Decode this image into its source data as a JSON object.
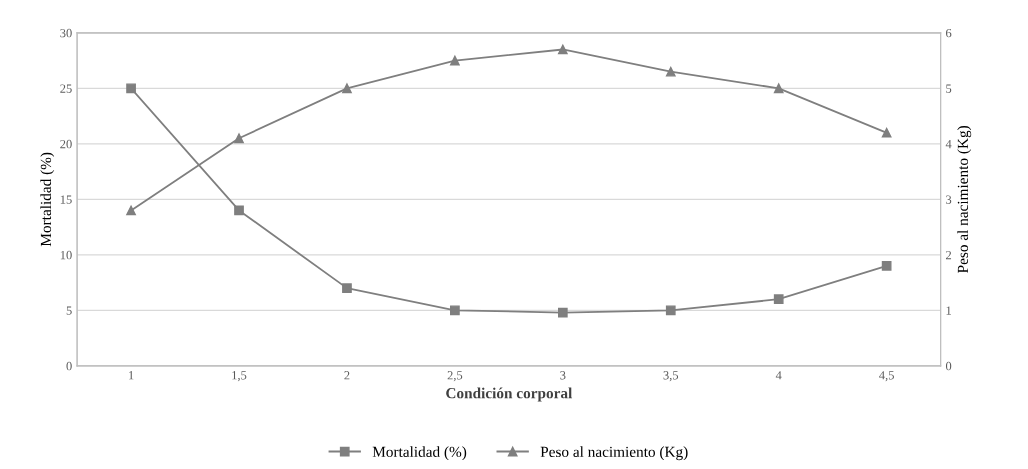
{
  "chart_data": {
    "type": "line",
    "xlabel": "Condición corporal",
    "ylabel": "Mortalidad (%)",
    "y2label": "Peso al nacimiento (Kg)",
    "categories": [
      "1",
      "1,5",
      "2",
      "2,5",
      "3",
      "3,5",
      "4",
      "4,5"
    ],
    "series": [
      {
        "name": "Mortalidad (%)",
        "color": "#7f7f7f",
        "marker": "square",
        "values": [
          25,
          14,
          7,
          5,
          4.8,
          5,
          6,
          9
        ]
      },
      {
        "name": "Peso al nacimiento (Kg)",
        "color": "#7f7f7f",
        "marker": "triangle",
        "axis": "y2",
        "values": [
          2.8,
          4.1,
          5.0,
          5.5,
          5.7,
          5.3,
          5.0,
          4.2
        ]
      }
    ],
    "ylim": [
      0,
      30
    ],
    "yticks": [
      0,
      5,
      10,
      15,
      20,
      25,
      30
    ],
    "y2lim": [
      0,
      6
    ],
    "y2ticks": [
      0,
      1,
      2,
      3,
      4,
      5,
      6
    ],
    "grid": "y",
    "legend": "bottom",
    "line_style": "solid"
  }
}
